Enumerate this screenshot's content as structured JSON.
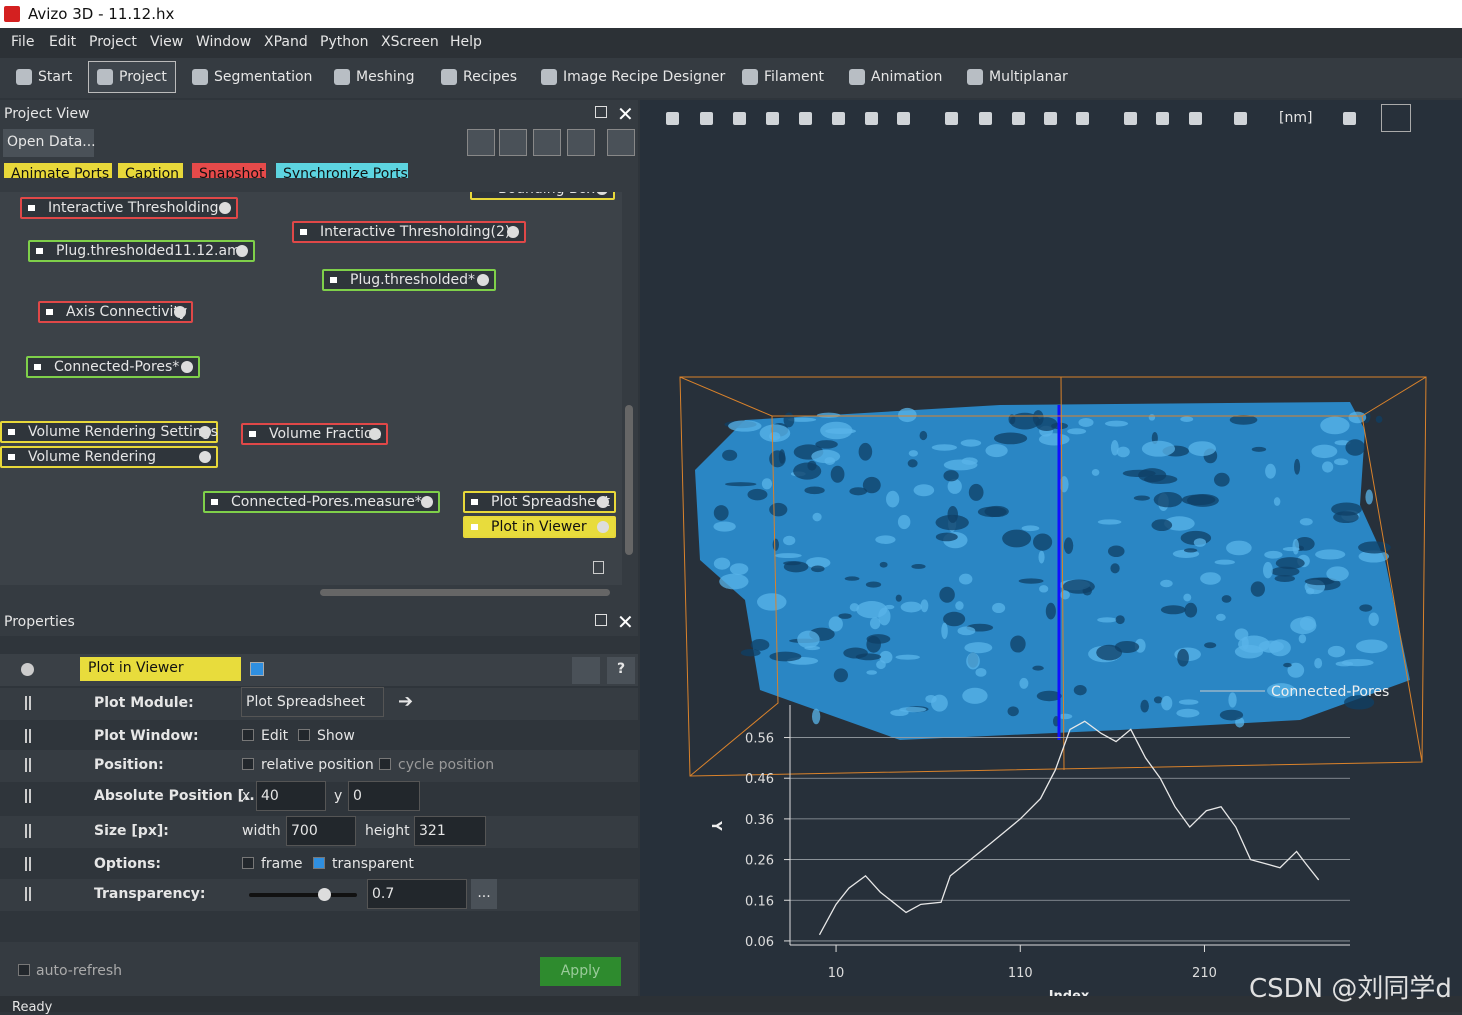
{
  "window_title": "Avizo 3D - 11.12.hx",
  "menu": [
    "File",
    "Edit",
    "Project",
    "View",
    "Window",
    "XPand",
    "Python",
    "XScreen",
    "Help"
  ],
  "toolbar": [
    "Start",
    "Project",
    "Segmentation",
    "Meshing",
    "Recipes",
    "Image Recipe Designer",
    "Filament",
    "Animation",
    "Multiplanar"
  ],
  "project_view": {
    "title": "Project View",
    "open_data": "Open Data...",
    "port_buttons": [
      "Animate Ports",
      "Caption",
      "Snapshot",
      "Synchronize Ports"
    ],
    "nodes": [
      {
        "label": "Bounding Box"
      },
      {
        "label": "Interactive Thresholding"
      },
      {
        "label": "Plug.thresholded11.12.am"
      },
      {
        "label": "Interactive Thresholding(2)"
      },
      {
        "label": "Plug.thresholded*"
      },
      {
        "label": "Axis Connectivity"
      },
      {
        "label": "Connected-Pores*"
      },
      {
        "label": "Volume Rendering Settings"
      },
      {
        "label": "Volume Rendering"
      },
      {
        "label": "Volume Fraction"
      },
      {
        "label": "Connected-Pores.measure*"
      },
      {
        "label": "Plot Spreadsheet"
      },
      {
        "label": "Plot in Viewer"
      }
    ]
  },
  "properties": {
    "title": "Properties",
    "module": "Plot in Viewer",
    "rows": [
      {
        "label": "Plot Module:",
        "value": "Plot Spreadsheet"
      },
      {
        "label": "Plot Window:",
        "options": [
          {
            "label": "Edit",
            "checked": false
          },
          {
            "label": "Show",
            "checked": false
          }
        ]
      },
      {
        "label": "Position:",
        "options": [
          {
            "label": "relative position",
            "checked": false
          },
          {
            "label": "cycle position",
            "checked": false
          }
        ]
      },
      {
        "label": "Absolute Position [...",
        "fields": [
          {
            "name": "x",
            "value": 40
          },
          {
            "name": "y",
            "value": 0
          }
        ]
      },
      {
        "label": "Size [px]:",
        "fields": [
          {
            "name": "width",
            "value": 700
          },
          {
            "name": "height",
            "value": 321
          }
        ]
      },
      {
        "label": "Options:",
        "options": [
          {
            "label": "frame",
            "checked": false
          },
          {
            "label": "transparent",
            "checked": true
          }
        ]
      },
      {
        "label": "Transparency:",
        "value": 0.7,
        "more": "..."
      }
    ],
    "auto_refresh": "auto-refresh",
    "apply": "Apply"
  },
  "viewer": {
    "unit": "[nm]",
    "object_label": "Connected-Pores",
    "chart_data": {
      "type": "line",
      "x_label": "Index",
      "y_label": "Y",
      "x": [
        1,
        10,
        17,
        26,
        34,
        48,
        56,
        67,
        72,
        83,
        94,
        102,
        110,
        121,
        129,
        137,
        145,
        154,
        162,
        170,
        178,
        186,
        194,
        202,
        211,
        219,
        227,
        235,
        243,
        251,
        260,
        265,
        272
      ],
      "values": [
        0.075,
        0.15,
        0.19,
        0.22,
        0.18,
        0.13,
        0.15,
        0.155,
        0.22,
        0.26,
        0.3,
        0.33,
        0.36,
        0.41,
        0.48,
        0.58,
        0.6,
        0.57,
        0.55,
        0.58,
        0.51,
        0.46,
        0.39,
        0.34,
        0.38,
        0.39,
        0.34,
        0.26,
        0.25,
        0.24,
        0.28,
        0.25,
        0.21
      ],
      "color": "#e8e8e8",
      "xlim": [
        -15,
        289
      ],
      "ylim": [
        0.05,
        0.64
      ],
      "xticks": [
        10,
        110,
        210
      ],
      "yticks": [
        0.06,
        0.16,
        0.26,
        0.36,
        0.46,
        0.56
      ],
      "grid": true
    }
  },
  "status": "Ready",
  "watermark": "CSDN @刘同学d"
}
